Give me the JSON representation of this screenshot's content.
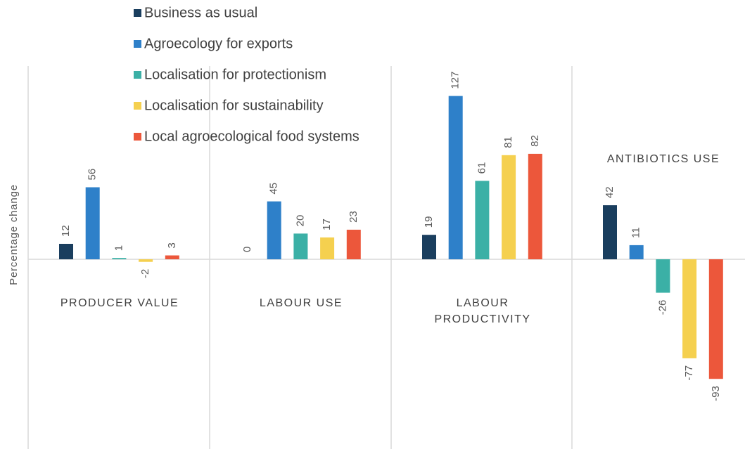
{
  "chart_data": {
    "type": "bar",
    "ylabel": "Percentage change",
    "grid": false,
    "legend_position": "top-left",
    "series": [
      {
        "name": "Business as usual",
        "color": "#1a3e5e",
        "values": [
          12,
          0,
          19,
          42
        ]
      },
      {
        "name": "Agroecology for exports",
        "color": "#2e80c9",
        "values": [
          56,
          45,
          127,
          11
        ]
      },
      {
        "name": "Localisation for protectionism",
        "color": "#3bb0a6",
        "values": [
          1,
          20,
          61,
          -26
        ]
      },
      {
        "name": "Localisation for sustainability",
        "color": "#f5d04f",
        "values": [
          -2,
          17,
          81,
          -77
        ]
      },
      {
        "name": "Local agroecological food systems",
        "color": "#ec573b",
        "values": [
          3,
          23,
          82,
          -93
        ]
      }
    ],
    "groups": [
      {
        "label_lines": [
          "PRODUCER VALUE"
        ]
      },
      {
        "label_lines": [
          "LABOUR USE"
        ]
      },
      {
        "label_lines": [
          "LABOUR",
          "PRODUCTIVITY"
        ]
      },
      {
        "label_lines": [
          "ANTIBIOTICS USE"
        ]
      }
    ]
  }
}
